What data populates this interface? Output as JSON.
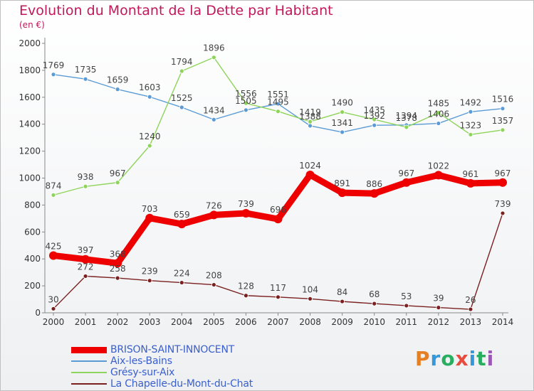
{
  "header": {
    "title": "Evolution du Montant de la Dette par Habitant",
    "unit": "(en €)"
  },
  "logo": {
    "text": "Proxiti",
    "colors": [
      "#e67e22",
      "#3498db",
      "#27ae60",
      "#e74c3c",
      "#3498db",
      "#27ae60",
      "#9b59b6"
    ]
  },
  "chart_data": {
    "type": "line",
    "title": "Evolution du Montant de la Dette par Habitant",
    "subtitle": "(en €)",
    "xlabel": "",
    "ylabel": "",
    "x": [
      "2000",
      "2001",
      "2002",
      "2003",
      "2004",
      "2005",
      "2006",
      "2007",
      "2008",
      "2009",
      "2010",
      "2011",
      "2012",
      "2013",
      "2014"
    ],
    "yticks": [
      0,
      200,
      400,
      600,
      800,
      1000,
      1200,
      1400,
      1600,
      1800,
      2000
    ],
    "ylim": [
      0,
      2000
    ],
    "grid": false,
    "legend_position": "bottom-left",
    "series": [
      {
        "name": "BRISON-SAINT-INNOCENT",
        "color": "#ee0000",
        "emphasis": true,
        "values": [
          425,
          397,
          368,
          703,
          659,
          726,
          739,
          696,
          1024,
          891,
          886,
          967,
          1022,
          961,
          967
        ]
      },
      {
        "name": "Aix-les-Bains",
        "color": "#5b9bd5",
        "emphasis": false,
        "values": [
          1769,
          1735,
          1659,
          1603,
          1525,
          1434,
          1505,
          1551,
          1388,
          1341,
          1392,
          1394,
          1406,
          1492,
          1516
        ]
      },
      {
        "name": "Grésy-sur-Aix",
        "color": "#8fd45a",
        "emphasis": false,
        "values": [
          874,
          938,
          967,
          1240,
          1794,
          1896,
          1556,
          1495,
          1419,
          1490,
          1435,
          1378,
          1485,
          1323,
          1357
        ]
      },
      {
        "name": "La Chapelle-du-Mont-du-Chat",
        "color": "#7b2020",
        "emphasis": false,
        "values": [
          30,
          272,
          258,
          239,
          224,
          208,
          128,
          117,
          104,
          84,
          68,
          53,
          39,
          26,
          739
        ]
      }
    ]
  }
}
